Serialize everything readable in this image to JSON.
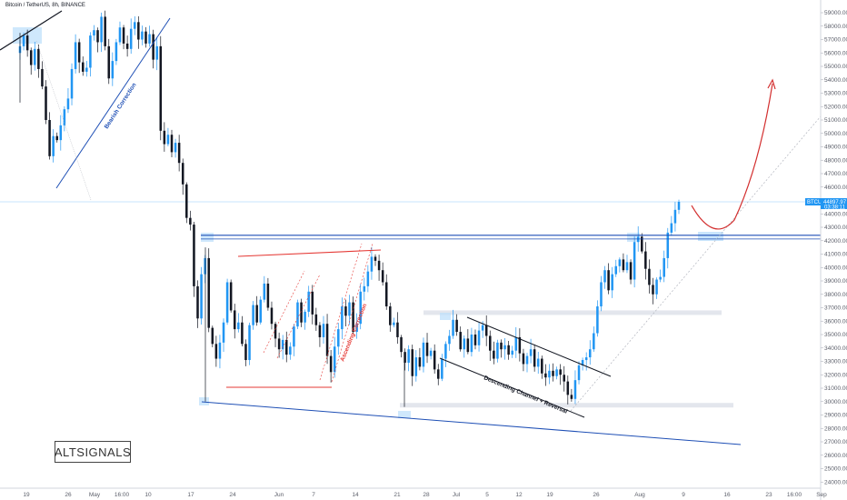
{
  "header": {
    "symbol_title": "Bitcoin / TetherUS, 8h, BINANCE"
  },
  "logo": {
    "text": "ALTSIGNALS"
  },
  "price_tag": {
    "symbol": "BTCUSDT",
    "price": "44897.97",
    "countdown": "03:38:11"
  },
  "colors": {
    "up": "#2196f3",
    "down": "#131722",
    "resistance": "#e53935",
    "trend": "#1e4fb5",
    "zone": "#e0e3eb",
    "zone_blue": "#bbdefb",
    "arrow": "#d32f2f"
  },
  "annotations": {
    "bearish_correction": "Bearish Correction",
    "ascending_correction": "Ascending Correction",
    "descending_channel": "Descending Channel + Reversal"
  },
  "chart_data": {
    "type": "candlestick",
    "title": "Bitcoin / TetherUS, 8h, BINANCE",
    "y_ticks": [
      24000,
      25000,
      26000,
      27000,
      28000,
      29000,
      30000,
      31000,
      32000,
      33000,
      34000,
      35000,
      36000,
      37000,
      38000,
      39000,
      40000,
      41000,
      42000,
      43000,
      44000,
      45000,
      46000,
      47000,
      48000,
      49000,
      50000,
      51000,
      52000,
      53000,
      54000,
      55000,
      56000,
      57000,
      58000,
      59000
    ],
    "y_tick_labels": [
      "24000.00",
      "25000.00",
      "26000.00",
      "27000.00",
      "28000.00",
      "29000.00",
      "30000.00",
      "31000.00",
      "32000.00",
      "33000.00",
      "34000.00",
      "35000.00",
      "36000.00",
      "37000.00",
      "38000.00",
      "39000.00",
      "40000.00",
      "41000.00",
      "42000.00",
      "43000.00",
      "44000.00",
      "45000.00",
      "46000.00",
      "47000.00",
      "48000.00",
      "49000.00",
      "50000.00",
      "51000.00",
      "52000.00",
      "53000.00",
      "54000.00",
      "55000.00",
      "56000.00",
      "57000.00",
      "58000.00",
      "59000.00"
    ],
    "x_tick_labels": [
      "19",
      "26",
      "May",
      "16:00",
      "10",
      "17",
      "24",
      "Jun",
      "7",
      "14",
      "21",
      "28",
      "Jul",
      "5",
      "12",
      "19",
      "26",
      "Aug",
      "9",
      "16",
      "23",
      "16:00",
      "Sep"
    ],
    "ylim": [
      23200,
      60000
    ],
    "levels": {
      "current_price": 44898,
      "resistance": 42400
    },
    "candles_close": [
      56500,
      57300,
      56200,
      55100,
      56300,
      54800,
      53500,
      51000,
      48300,
      49800,
      49500,
      50600,
      51800,
      52600,
      54800,
      56800,
      55300,
      54600,
      54900,
      57300,
      57700,
      56800,
      58700,
      56500,
      54100,
      55400,
      56800,
      57900,
      56700,
      56300,
      57800,
      58300,
      57000,
      57600,
      56700,
      57400,
      55500,
      56500,
      50200,
      49200,
      49900,
      48600,
      49300,
      47800,
      46200,
      43700,
      43200,
      38600,
      36200,
      39500,
      40700,
      35500,
      34300,
      33200,
      34400,
      35900,
      38900,
      36800,
      35400,
      35900,
      34300,
      33100,
      35700,
      37200,
      35900,
      37600,
      38800,
      37000,
      35800,
      34700,
      33900,
      34600,
      33500,
      34100,
      35600,
      37400,
      35900,
      36700,
      38200,
      36500,
      35700,
      34800,
      35800,
      33400,
      32200,
      34100,
      35400,
      37100,
      36400,
      37400,
      35200,
      35800,
      38200,
      38600,
      39700,
      40800,
      40500,
      39800,
      38900,
      37100,
      35700,
      35900,
      34800,
      33700,
      32900,
      33900,
      31900,
      33300,
      32600,
      34400,
      33400,
      33800,
      32400,
      31700,
      33200,
      34300,
      34900,
      36100,
      35200,
      33900,
      34700,
      33700,
      35000,
      34200,
      35300,
      35700,
      34900,
      33800,
      33200,
      34400,
      33900,
      34200,
      33500,
      33800,
      34800,
      33600,
      32800,
      33400,
      33900,
      32600,
      33200,
      32100,
      31800,
      32300,
      31900,
      32400,
      32000,
      31500,
      30500,
      30200,
      31600,
      32700,
      33100,
      33300,
      33900,
      35100,
      37100,
      38900,
      39800,
      38300,
      39500,
      40100,
      40600,
      39800,
      40400,
      39100,
      41900,
      42300,
      41200,
      39900,
      38700,
      38000,
      39100,
      39300,
      40700,
      42600,
      43300,
      44300,
      44898
    ],
    "annotation_lines": {
      "bearish_correction": "trendline 47000 to 59000",
      "descending_channel": "channel 36400 to 31900",
      "support_diagonal": "falling 29900 to 27200"
    }
  }
}
